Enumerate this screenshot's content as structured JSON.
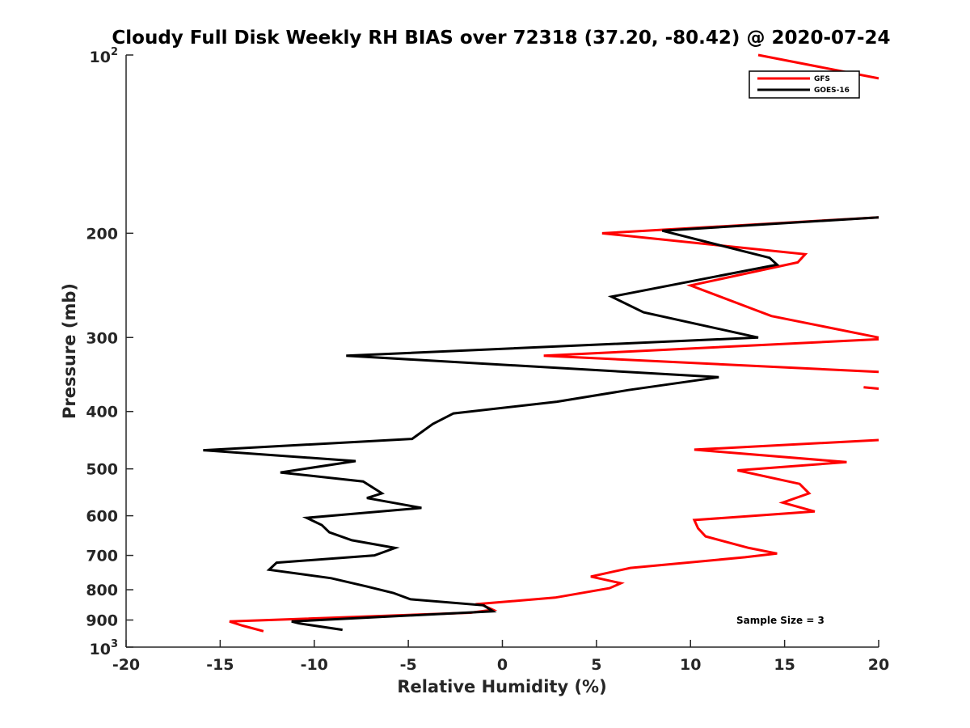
{
  "chart_data": {
    "type": "line",
    "title": "Cloudy Full Disk Weekly RH BIAS over 72318 (37.20, -80.42) @ 2020-07-24",
    "xlabel": "Relative Humidity (%)",
    "ylabel": "Pressure (mb)",
    "xlim": [
      -20,
      20
    ],
    "ylim": [
      100,
      1000
    ],
    "yscale": "log",
    "y_reversed": true,
    "x_ticks": [
      -20,
      -15,
      -10,
      -5,
      0,
      5,
      10,
      15,
      20
    ],
    "x_tick_labels": [
      "-20",
      "-15",
      "-10",
      "-5",
      "0",
      "5",
      "10",
      "15",
      "20"
    ],
    "y_ticks": [
      200,
      300,
      400,
      500,
      600,
      700,
      800,
      900
    ],
    "y_tick_labels": [
      "200",
      "300",
      "400",
      "500",
      "600",
      "700",
      "800",
      "900"
    ],
    "y_end_labels": {
      "top_base": "10",
      "top_exp": "2",
      "bottom_base": "10",
      "bottom_exp": "3"
    },
    "legend": {
      "position": "top-right",
      "entries": [
        "GFS",
        "GOES-16"
      ]
    },
    "annotation": "Sample Size = 3",
    "series": [
      {
        "name": "GFS",
        "color": "#ff0000",
        "segments": [
          [
            [
              13.6,
              100
            ],
            [
              20.0,
              109.5
            ]
          ],
          [
            [
              20.0,
              188
            ],
            [
              5.3,
              200
            ],
            [
              16.1,
              217
            ],
            [
              15.7,
              224
            ],
            [
              10.0,
              245
            ],
            [
              14.3,
              276
            ],
            [
              20.0,
              300
            ]
          ],
          [
            [
              20.0,
              302
            ],
            [
              2.2,
              322
            ],
            [
              20.0,
              343
            ]
          ],
          [
            [
              19.2,
              364
            ],
            [
              20.0,
              366
            ]
          ],
          [
            [
              20.0,
              447
            ],
            [
              10.2,
              464
            ],
            [
              18.3,
              487
            ],
            [
              12.5,
              503
            ],
            [
              15.8,
              530
            ],
            [
              16.3,
              550
            ],
            [
              14.9,
              570
            ],
            [
              16.6,
              590
            ],
            [
              10.2,
              610
            ],
            [
              10.4,
              630
            ],
            [
              10.8,
              650
            ],
            [
              13.1,
              680
            ],
            [
              14.6,
              695
            ],
            [
              12.9,
              705
            ],
            [
              6.8,
              735
            ],
            [
              4.7,
              760
            ],
            [
              6.3,
              780
            ],
            [
              5.7,
              795
            ],
            [
              2.8,
              825
            ],
            [
              -1.2,
              845
            ],
            [
              -0.5,
              865
            ],
            [
              -1.7,
              875
            ],
            [
              -14.5,
              905
            ],
            [
              -13.8,
              920
            ],
            [
              -12.7,
              940
            ]
          ]
        ]
      },
      {
        "name": "GOES-16",
        "color": "#000000",
        "segments": [
          [
            [
              20.0,
              188
            ],
            [
              8.5,
              198
            ],
            [
              14.2,
              220
            ],
            [
              14.6,
              226
            ],
            [
              5.8,
              256
            ],
            [
              7.5,
              272
            ],
            [
              13.6,
              300
            ],
            [
              -8.3,
              322
            ],
            [
              11.5,
              350
            ],
            [
              6.7,
              368
            ],
            [
              2.9,
              385
            ],
            [
              -2.6,
              403
            ],
            [
              -3.7,
              420
            ],
            [
              -4.8,
              445
            ],
            [
              -15.9,
              465
            ],
            [
              -7.8,
              485
            ],
            [
              -11.8,
              507
            ],
            [
              -7.4,
              525
            ],
            [
              -6.4,
              550
            ],
            [
              -7.2,
              560
            ],
            [
              -4.3,
              582
            ],
            [
              -10.4,
              605
            ],
            [
              -9.6,
              622
            ],
            [
              -9.2,
              640
            ],
            [
              -8.0,
              660
            ],
            [
              -5.7,
              680
            ],
            [
              -6.8,
              700
            ],
            [
              -12.0,
              720
            ],
            [
              -12.4,
              740
            ],
            [
              -9.1,
              765
            ],
            [
              -7.2,
              790
            ],
            [
              -5.8,
              810
            ],
            [
              -4.9,
              830
            ],
            [
              -1.0,
              850
            ],
            [
              -0.5,
              870
            ],
            [
              -11.2,
              905
            ],
            [
              -10.8,
              912
            ],
            [
              -8.5,
              935
            ]
          ]
        ]
      }
    ]
  }
}
